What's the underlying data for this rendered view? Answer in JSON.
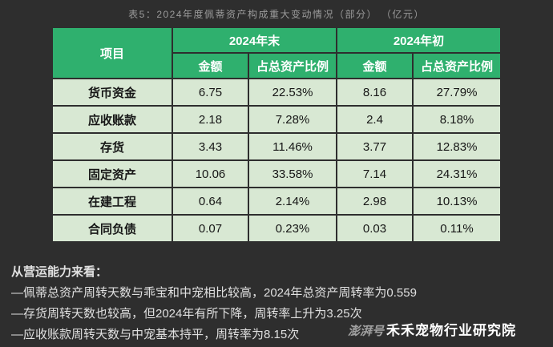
{
  "colors": {
    "page_bg": "#2e2e2e",
    "header_green": "#2fb06e",
    "row_green": "#d8e8d3",
    "title_color": "#9b9b9b",
    "notes_color": "#e0e0e0"
  },
  "title": "表5：2024年度佩蒂资产构成重大变动情况（部分） （亿元）",
  "chart_data": {
    "type": "table",
    "title": "表5：2024年度佩蒂资产构成重大变动情况（部分） （亿元）",
    "unit": "亿元",
    "header": {
      "item_col": "项目",
      "groups": [
        {
          "label": "2024年末",
          "sub": [
            "金额",
            "占总资产比例"
          ]
        },
        {
          "label": "2024年初",
          "sub": [
            "金额",
            "占总资产比例"
          ]
        }
      ]
    },
    "rows": [
      {
        "item": "货币资金",
        "values": [
          "6.75",
          "22.53%",
          "8.16",
          "27.79%"
        ]
      },
      {
        "item": "应收账款",
        "values": [
          "2.18",
          "7.28%",
          "2.4",
          "8.18%"
        ]
      },
      {
        "item": "存货",
        "values": [
          "3.43",
          "11.46%",
          "3.77",
          "12.83%"
        ]
      },
      {
        "item": "固定资产",
        "values": [
          "10.06",
          "33.58%",
          "7.14",
          "24.31%"
        ]
      },
      {
        "item": "在建工程",
        "values": [
          "0.64",
          "2.14%",
          "2.98",
          "10.13%"
        ]
      },
      {
        "item": "合同负债",
        "values": [
          "0.07",
          "0.23%",
          "0.03",
          "0.11%"
        ]
      }
    ]
  },
  "notes": {
    "heading": "从营运能力来看：",
    "lines": [
      "—佩蒂总资产周转天数与乖宝和中宠相比较高，2024年总资产周转率为0.559",
      "—存货周转天数也较高，但2024年有所下降，周转率上升为3.25次",
      "—应收账款周转天数与中宠基本持平，周转率为8.15次"
    ]
  },
  "watermark": {
    "logo_text": "澎湃号",
    "brand_text": "禾禾宠物行业研究院"
  }
}
